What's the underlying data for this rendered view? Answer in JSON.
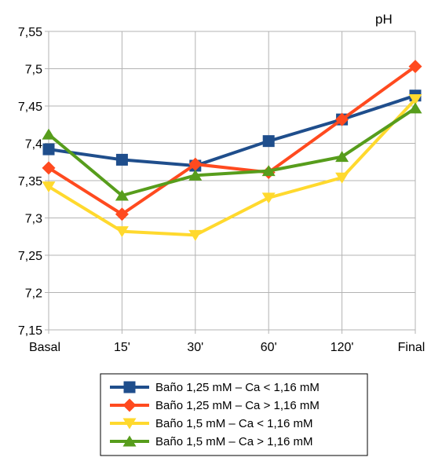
{
  "chart_data": {
    "type": "line",
    "title": "",
    "xlabel": "",
    "ylabel": "pH",
    "categories": [
      "Basal",
      "15'",
      "30'",
      "60'",
      "120'",
      "Final"
    ],
    "ylim": [
      7.15,
      7.55
    ],
    "y_ticks": [
      "7,15",
      "7,2",
      "7,25",
      "7,3",
      "7,35",
      "7,4",
      "7,45",
      "7,5",
      "7,55"
    ],
    "grid": true,
    "legend_position": "bottom",
    "series": [
      {
        "name": "Baño 1,25 mM – Ca < 1,16 mM",
        "color": "#1f4e8c",
        "marker": "square",
        "values": [
          7.392,
          7.378,
          7.37,
          7.403,
          7.432,
          7.464
        ]
      },
      {
        "name": "Baño 1,25 mM – Ca > 1,16 mM",
        "color": "#ff4a1f",
        "marker": "diamond",
        "values": [
          7.367,
          7.305,
          7.372,
          7.361,
          7.432,
          7.503
        ]
      },
      {
        "name": "Baño 1,5 mM – Ca < 1,16 mM",
        "color": "#ffd92e",
        "marker": "triangle-down",
        "values": [
          7.342,
          7.282,
          7.277,
          7.327,
          7.354,
          7.459
        ]
      },
      {
        "name": "Baño 1,5 mM – Ca > 1,16 mM",
        "color": "#579d1c",
        "marker": "triangle-up",
        "values": [
          7.412,
          7.33,
          7.357,
          7.363,
          7.382,
          7.447
        ]
      }
    ]
  }
}
